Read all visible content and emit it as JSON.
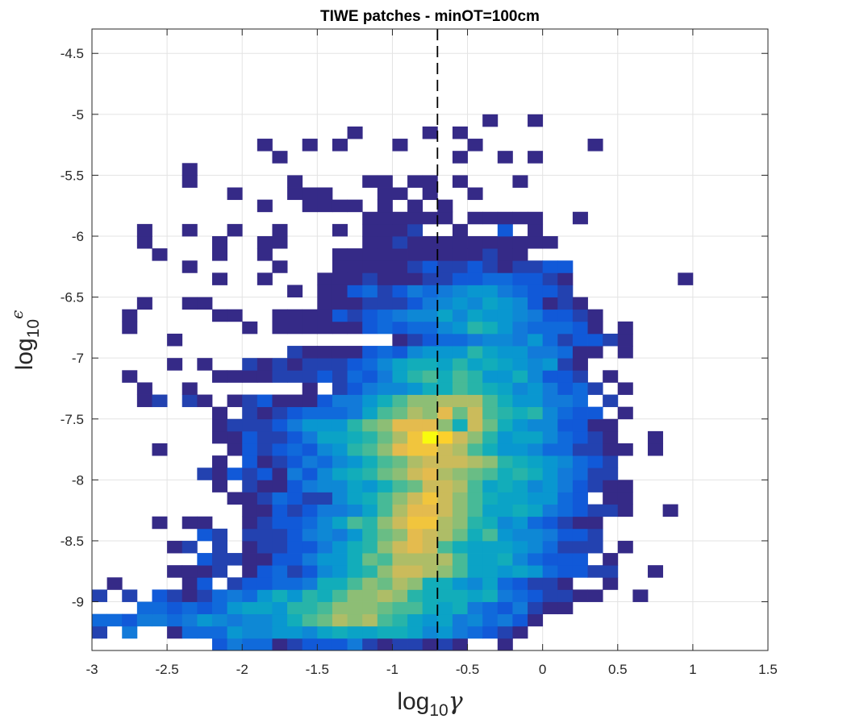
{
  "chart_data": {
    "type": "heatmap",
    "title": "TIWE patches - minOT=100cm",
    "xlabel": {
      "base": "log",
      "sub": "10",
      "symbol": "γ"
    },
    "ylabel": {
      "base": "log",
      "sub": "10",
      "symbol": "ϵ"
    },
    "xlim": [
      -3,
      1.5
    ],
    "ylim": [
      -9.4,
      -4.3
    ],
    "xticks": [
      -3,
      -2.5,
      -2,
      -1.5,
      -1,
      -0.5,
      0,
      0.5,
      1,
      1.5
    ],
    "xtick_labels": [
      "-3",
      "-2.5",
      "-2",
      "-1.5",
      "-1",
      "-0.5",
      "0",
      "0.5",
      "1",
      "1.5"
    ],
    "yticks": [
      -4.5,
      -5,
      -5.5,
      -6,
      -6.5,
      -7,
      -7.5,
      -8,
      -8.5,
      -9
    ],
    "ytick_labels": [
      "-4.5",
      "-5",
      "-5.5",
      "-6",
      "-6.5",
      "-7",
      "-7.5",
      "-8",
      "-8.5",
      "-9"
    ],
    "grid": true,
    "colormap": "parula",
    "reference_line": {
      "x": -0.7,
      "style": "dashed",
      "color": "#000000"
    },
    "bins": {
      "x_start": -3.0,
      "dx": 0.1,
      "y_start": -9.4,
      "dy": 0.1
    },
    "counts": [
      "        35441233352122121  1                    ",
      "2 5  144476677689889986754321                   ",
      "44355457656679BCEDEBA878564531                  ",
      "   4434347887AABDDDCBB9895435211                ",
      "2 2 3212454797A9BDDEDA999895432211  1           ",
      " 1    13 23344599BDCED9976843221  1             ",
      "     1112 13423679ADFFEDB8878743322  1          ",
      "       32211335779CBEEEEB88964333 1             ",
      "     12 2 12233579ADFGFB9888764222 1            ",
      "       32 22235657ACDGFEC9B7665332             1",
      "    1 11  1233468BADFHHEDA96743211              ",
      "          113235568BEGGFDB8898543221  1         ",
      "         1124322689BDFHFDB9887743 11            ",
      "        1 2113566879BCFFEB8986753211            ",
      "       21323153689ACDFGEDCB9A975422             ",
      "        1 312354679BCEFFFEDA9876432             ",
      "    1    13234367ABDGHHFEB9776442211 1          ",
      "        1132235889ACEHKIFDA78864321  1          ",
      "        122235777ACDGGGD9FC97663311             ",
      "        1 212344458BCEDGCFBA9A6433 1            ",
      "   12 21 12311135579BDDEEEB977554 2             ",
      "   1  1       1 23566799BA98675342 1            ",
      "  1     1111222324358AB9BA7796332 1             ",
      "     1 1  21212223468998A89876721               ",
      "             211113436777A87755411 1           ",
      "     1              1234456657423321            ",
      "  1       1 1111113434467A97544431 1            ",
      "  1     11  1111323456686877653321              ",
      "   1  11       111222356768763121               ",
      "             1 11342354567754332                ",
      "        1  1   11121112233443321       1        ",
      "      1     1   1111123223212233                ",
      "    1   1  1    1111111111211                   ",
      "   1    1  11     1121111111111                 ",
      "   1  1  1  1   1 1112  1  3 1                  ",
      "                  111111 11111  1               ",
      "           1  1111 1 1 1                        ",
      "         1   111   11 1  1                      ",
      "      1      1    11 11 1   1                   ",
      "      1                                         ",
      "            1           1  1 1                  ",
      "           1  1 1   1    1       1              ",
      "                 1    1 1                       ",
      "                          1  1                  "
    ],
    "count_encoding": "0-9 then A=10 ... K=20; space = empty bin"
  }
}
